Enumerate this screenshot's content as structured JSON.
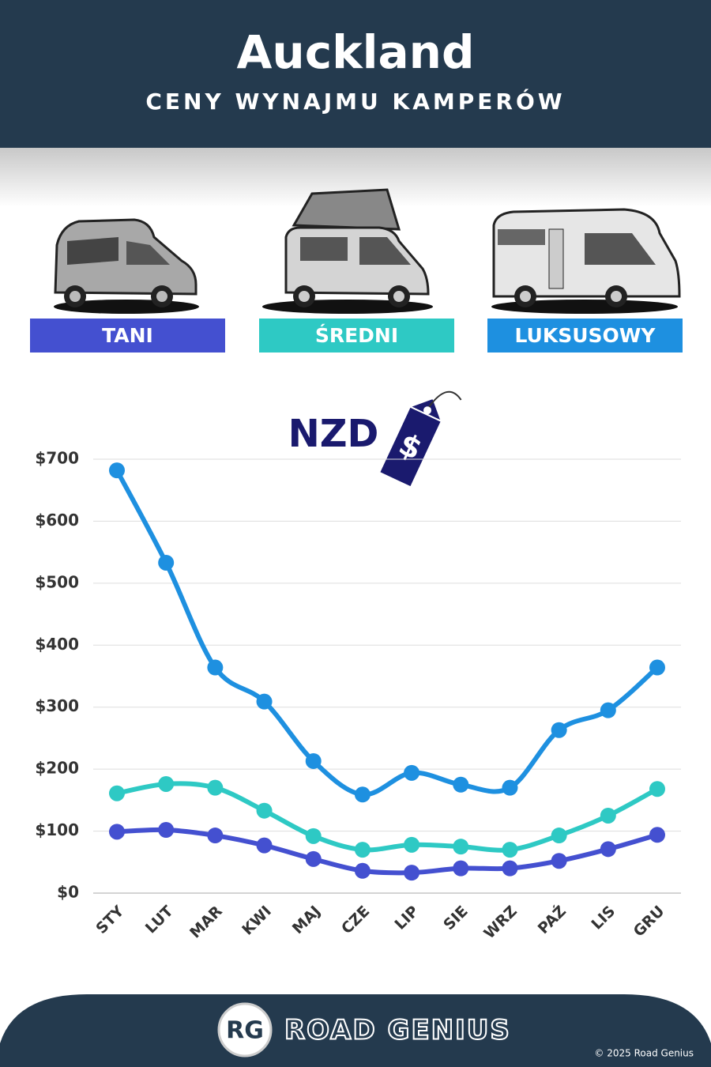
{
  "chart_data": {
    "type": "line",
    "title": "Auckland",
    "subtitle": "CENY WYNAJMU KAMPERÓW",
    "annotation": "NZD",
    "tag_symbol": "$",
    "categories": [
      "STY",
      "LUT",
      "MAR",
      "KWI",
      "MAJ",
      "CZE",
      "LIP",
      "SIE",
      "WRZ",
      "PAŹ",
      "LIS",
      "GRU"
    ],
    "series": [
      {
        "name": "TANI",
        "color": "#4450d0",
        "values": [
          99,
          102,
          93,
          77,
          55,
          36,
          33,
          40,
          40,
          52,
          71,
          94
        ]
      },
      {
        "name": "ŚREDNI",
        "color": "#2ec9c4",
        "values": [
          161,
          176,
          170,
          133,
          92,
          70,
          78,
          75,
          70,
          93,
          125,
          168
        ]
      },
      {
        "name": "LUKSUSOWY",
        "color": "#1e90e0",
        "values": [
          682,
          533,
          364,
          309,
          213,
          159,
          194,
          175,
          170,
          263,
          295,
          364
        ]
      }
    ],
    "ylim": [
      0,
      700
    ],
    "yticks": [
      {
        "value": 0,
        "label": "$0"
      },
      {
        "value": 100,
        "label": "$100"
      },
      {
        "value": 200,
        "label": "$200"
      },
      {
        "value": 300,
        "label": "$300"
      },
      {
        "value": 400,
        "label": "$400"
      },
      {
        "value": 500,
        "label": "$500"
      },
      {
        "value": 600,
        "label": "$600"
      },
      {
        "value": 700,
        "label": "$700"
      }
    ],
    "grid": true
  },
  "footer": {
    "logo": "RG",
    "brand": "ROAD GENIUS",
    "copyright": "© 2025 Road Genius"
  }
}
